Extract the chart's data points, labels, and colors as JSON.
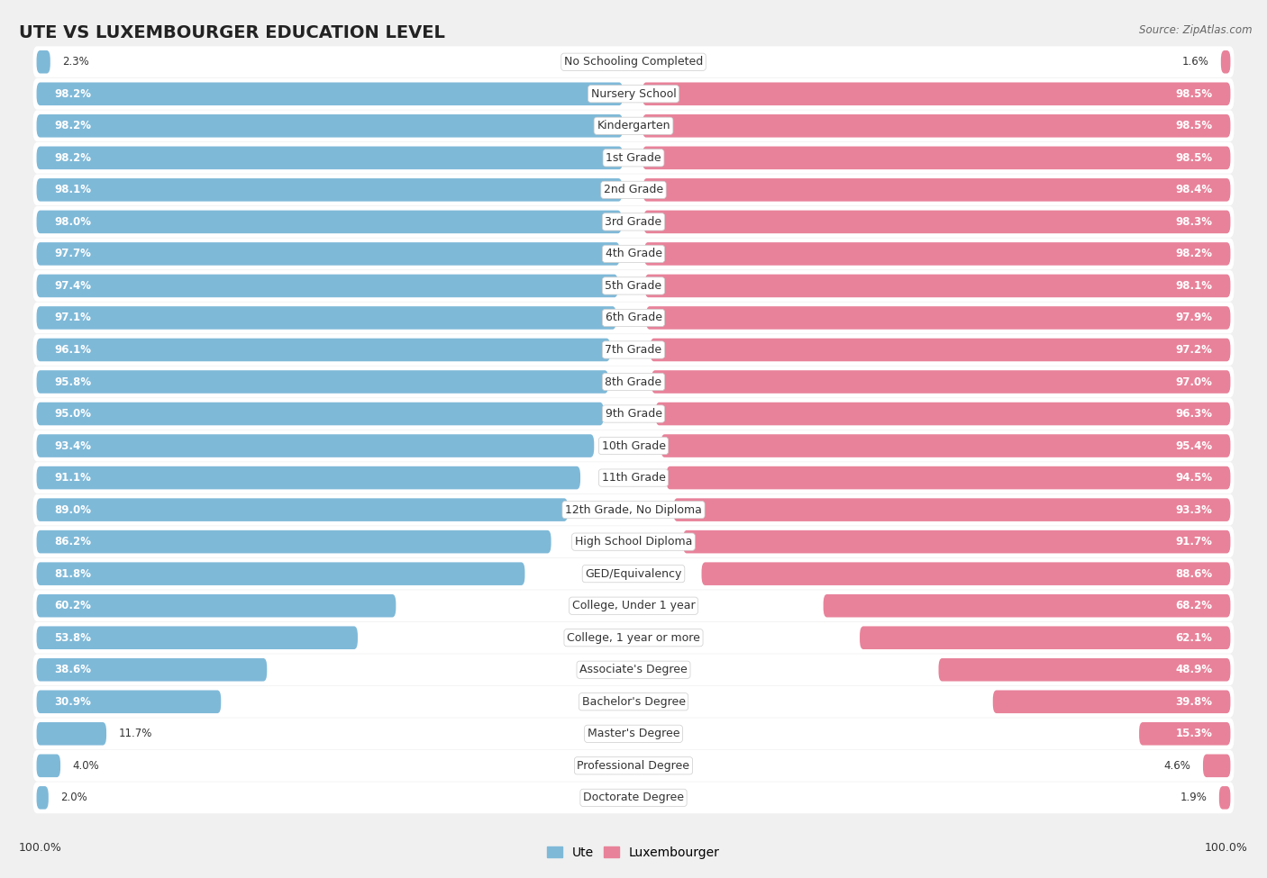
{
  "title": "UTE VS LUXEMBOURGER EDUCATION LEVEL",
  "source": "Source: ZipAtlas.com",
  "categories": [
    "No Schooling Completed",
    "Nursery School",
    "Kindergarten",
    "1st Grade",
    "2nd Grade",
    "3rd Grade",
    "4th Grade",
    "5th Grade",
    "6th Grade",
    "7th Grade",
    "8th Grade",
    "9th Grade",
    "10th Grade",
    "11th Grade",
    "12th Grade, No Diploma",
    "High School Diploma",
    "GED/Equivalency",
    "College, Under 1 year",
    "College, 1 year or more",
    "Associate's Degree",
    "Bachelor's Degree",
    "Master's Degree",
    "Professional Degree",
    "Doctorate Degree"
  ],
  "ute": [
    2.3,
    98.2,
    98.2,
    98.2,
    98.1,
    98.0,
    97.7,
    97.4,
    97.1,
    96.1,
    95.8,
    95.0,
    93.4,
    91.1,
    89.0,
    86.2,
    81.8,
    60.2,
    53.8,
    38.6,
    30.9,
    11.7,
    4.0,
    2.0
  ],
  "luxembourger": [
    1.6,
    98.5,
    98.5,
    98.5,
    98.4,
    98.3,
    98.2,
    98.1,
    97.9,
    97.2,
    97.0,
    96.3,
    95.4,
    94.5,
    93.3,
    91.7,
    88.6,
    68.2,
    62.1,
    48.9,
    39.8,
    15.3,
    4.6,
    1.9
  ],
  "ute_color": "#7fb9d8",
  "lux_color": "#e8829a",
  "row_bg_color": "#e8e8e8",
  "background_color": "#f0f0f0",
  "title_fontsize": 14,
  "label_fontsize": 9,
  "value_fontsize": 8.5,
  "inside_label_threshold": 15
}
